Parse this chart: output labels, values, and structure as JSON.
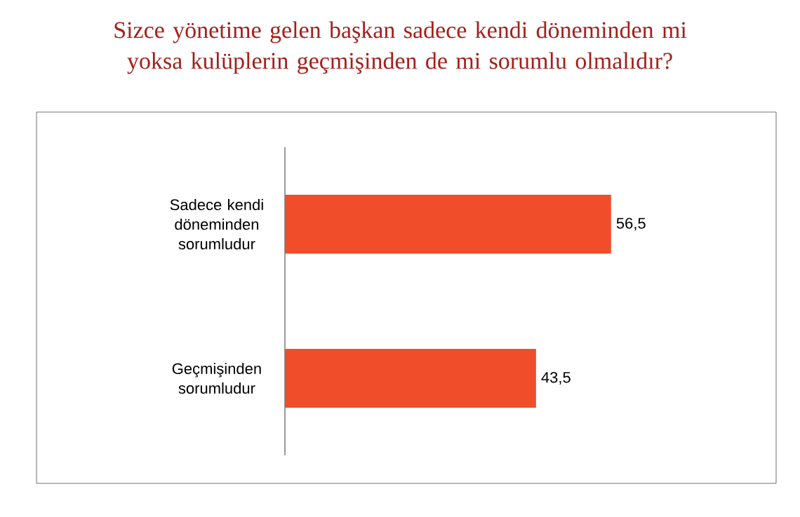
{
  "chart_data": {
    "type": "bar",
    "orientation": "horizontal",
    "title": "Sizce yönetime gelen başkan sadece kendi döneminden mi yoksa kulüplerin geçmişinden de mi sorumlu olmalıdır?",
    "categories": [
      "Sadece kendi döneminden sorumludur",
      "Geçmişinden sorumludur"
    ],
    "values": [
      56.5,
      43.5
    ],
    "value_labels": [
      "56,5",
      "43,5"
    ],
    "color": "#f04e2b"
  }
}
